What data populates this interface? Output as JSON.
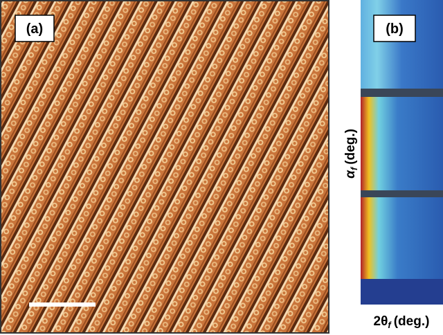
{
  "panel_a": {
    "label": "(a)"
  },
  "panel_b": {
    "label": "(b)",
    "y_axis": {
      "symbol": "α",
      "subscript": "f",
      "unit": "(deg.)"
    },
    "x_axis": {
      "symbol": "2θ",
      "subscript": "f",
      "unit": "(deg.)"
    }
  }
}
